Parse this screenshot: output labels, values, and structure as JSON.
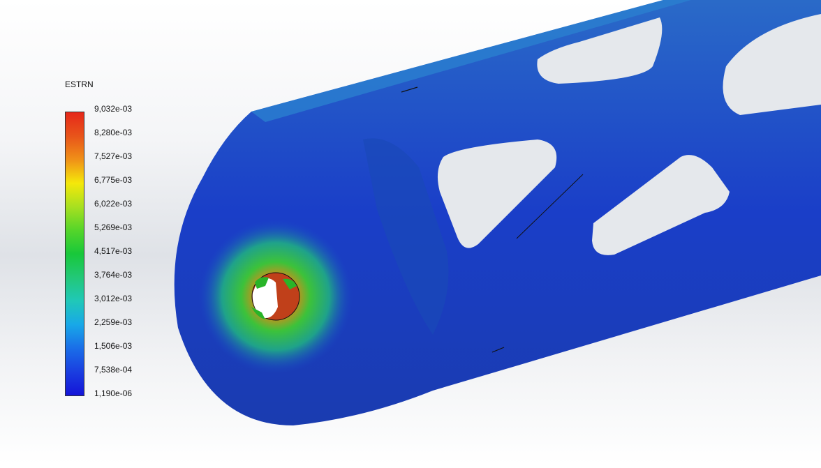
{
  "legend": {
    "title": "ESTRN",
    "ticks": [
      "9,032e-03",
      "8,280e-03",
      "7,527e-03",
      "6,775e-03",
      "6,022e-03",
      "5,269e-03",
      "4,517e-03",
      "3,764e-03",
      "3,012e-03",
      "2,259e-03",
      "1,506e-03",
      "7,538e-04",
      "1,190e-06"
    ],
    "colors": [
      "#e6281a",
      "#e8541a",
      "#f09018",
      "#f5e80a",
      "#a8e020",
      "#55d52a",
      "#18c83a",
      "#22c878",
      "#20c8b8",
      "#18a8e8",
      "#1a6ee8",
      "#1a3ee0",
      "#1414d8"
    ]
  },
  "model": {
    "base_color": "#1a3ec8",
    "hot_color": "#e63a1a"
  }
}
